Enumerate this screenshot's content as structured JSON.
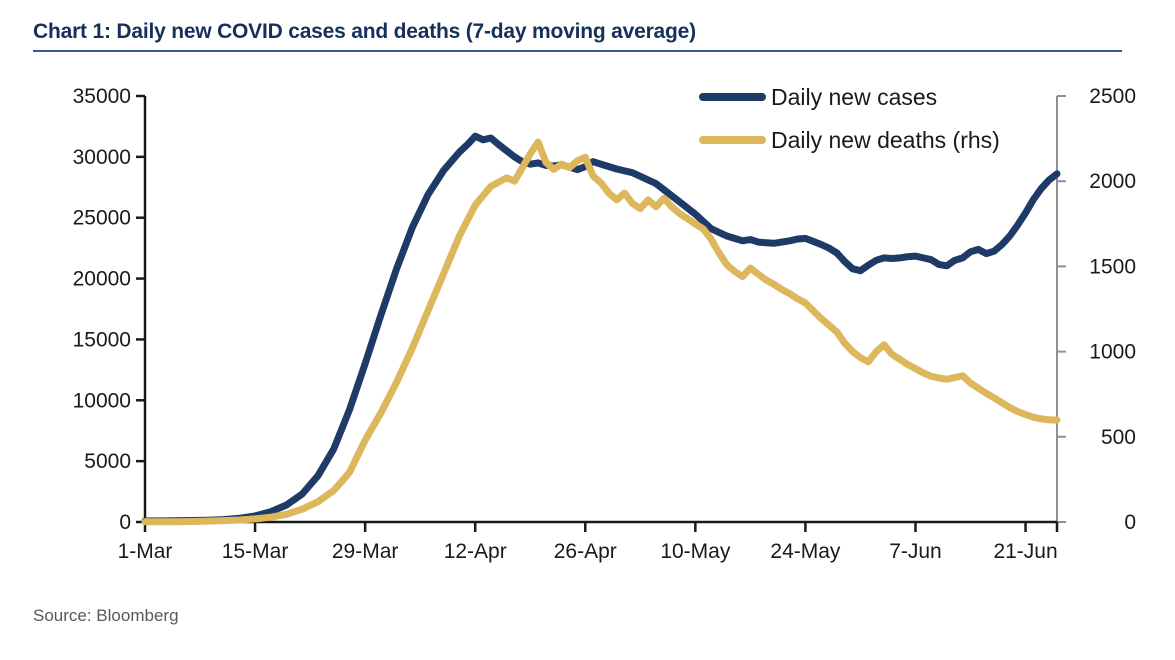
{
  "title": "Chart 1: Daily new COVID cases and deaths (7-day moving average)",
  "source": "Source: Bloomberg",
  "colors": {
    "cases_line": "#1e3a66",
    "deaths_line": "#ddb75c",
    "title_text": "#16305a",
    "title_rule": "#2f5b97",
    "axis": "#1a1a1a",
    "right_axis": "#8f9093",
    "tick_text": "#1a1a1a",
    "source_text": "#58595b"
  },
  "chart_data": {
    "type": "line",
    "title": "Chart 1: Daily new COVID cases and deaths (7-day moving average)",
    "x_unit": "days since 1-Mar",
    "x_range": [
      0,
      116
    ],
    "x_tick_days": [
      0,
      14,
      28,
      42,
      56,
      70,
      84,
      98,
      112
    ],
    "x_tick_labels": [
      "1-Mar",
      "15-Mar",
      "29-Mar",
      "12-Apr",
      "26-Apr",
      "10-May",
      "24-May",
      "7-Jun",
      "21-Jun"
    ],
    "left_axis": {
      "min": 0,
      "max": 35000,
      "step": 5000,
      "tick_labels": [
        "0",
        "5000",
        "10000",
        "15000",
        "20000",
        "25000",
        "30000",
        "35000"
      ]
    },
    "right_axis": {
      "min": 0,
      "max": 2500,
      "step": 500,
      "tick_labels": [
        "0",
        "500",
        "1000",
        "1500",
        "2000",
        "2500"
      ]
    },
    "legend_position": "top-right-inside",
    "grid": false,
    "series": [
      {
        "name": "Daily new cases",
        "axis": "left",
        "color_key": "cases_line",
        "points": [
          [
            0,
            80
          ],
          [
            2,
            90
          ],
          [
            4,
            100
          ],
          [
            6,
            120
          ],
          [
            8,
            150
          ],
          [
            10,
            200
          ],
          [
            12,
            300
          ],
          [
            14,
            500
          ],
          [
            16,
            850
          ],
          [
            18,
            1400
          ],
          [
            20,
            2300
          ],
          [
            22,
            3800
          ],
          [
            24,
            6000
          ],
          [
            26,
            9200
          ],
          [
            28,
            13000
          ],
          [
            30,
            17000
          ],
          [
            32,
            20800
          ],
          [
            34,
            24200
          ],
          [
            36,
            26900
          ],
          [
            38,
            28900
          ],
          [
            40,
            30400
          ],
          [
            41,
            31000
          ],
          [
            42,
            31700
          ],
          [
            43,
            31400
          ],
          [
            44,
            31550
          ],
          [
            45,
            31000
          ],
          [
            46,
            30500
          ],
          [
            47,
            30000
          ],
          [
            48,
            29600
          ],
          [
            49,
            29400
          ],
          [
            50,
            29500
          ],
          [
            51,
            29300
          ],
          [
            52,
            29250
          ],
          [
            53,
            29350
          ],
          [
            54,
            29150
          ],
          [
            55,
            28950
          ],
          [
            56,
            29200
          ],
          [
            57,
            29600
          ],
          [
            58,
            29400
          ],
          [
            59,
            29200
          ],
          [
            60,
            29000
          ],
          [
            61,
            28850
          ],
          [
            62,
            28700
          ],
          [
            63,
            28400
          ],
          [
            64,
            28100
          ],
          [
            65,
            27800
          ],
          [
            66,
            27300
          ],
          [
            67,
            26800
          ],
          [
            68,
            26300
          ],
          [
            69,
            25800
          ],
          [
            70,
            25300
          ],
          [
            71,
            24700
          ],
          [
            72,
            24100
          ],
          [
            73,
            23800
          ],
          [
            74,
            23500
          ],
          [
            75,
            23300
          ],
          [
            76,
            23100
          ],
          [
            77,
            23200
          ],
          [
            78,
            23000
          ],
          [
            79,
            22950
          ],
          [
            80,
            22900
          ],
          [
            81,
            23000
          ],
          [
            82,
            23100
          ],
          [
            83,
            23250
          ],
          [
            84,
            23300
          ],
          [
            85,
            23050
          ],
          [
            86,
            22800
          ],
          [
            87,
            22500
          ],
          [
            88,
            22100
          ],
          [
            89,
            21400
          ],
          [
            90,
            20800
          ],
          [
            91,
            20650
          ],
          [
            92,
            21100
          ],
          [
            93,
            21500
          ],
          [
            94,
            21700
          ],
          [
            95,
            21650
          ],
          [
            96,
            21700
          ],
          [
            97,
            21800
          ],
          [
            98,
            21850
          ],
          [
            99,
            21700
          ],
          [
            100,
            21550
          ],
          [
            101,
            21150
          ],
          [
            102,
            21050
          ],
          [
            103,
            21500
          ],
          [
            104,
            21700
          ],
          [
            105,
            22200
          ],
          [
            106,
            22400
          ],
          [
            107,
            22050
          ],
          [
            108,
            22250
          ],
          [
            109,
            22800
          ],
          [
            110,
            23500
          ],
          [
            111,
            24400
          ],
          [
            112,
            25400
          ],
          [
            113,
            26500
          ],
          [
            114,
            27400
          ],
          [
            115,
            28100
          ],
          [
            116,
            28600
          ]
        ]
      },
      {
        "name": "Daily new deaths (rhs)",
        "axis": "right",
        "color_key": "deaths_line",
        "points": [
          [
            0,
            1
          ],
          [
            2,
            1
          ],
          [
            4,
            2
          ],
          [
            6,
            3
          ],
          [
            8,
            5
          ],
          [
            10,
            8
          ],
          [
            12,
            12
          ],
          [
            14,
            18
          ],
          [
            16,
            28
          ],
          [
            18,
            45
          ],
          [
            20,
            75
          ],
          [
            22,
            120
          ],
          [
            24,
            185
          ],
          [
            26,
            290
          ],
          [
            28,
            480
          ],
          [
            30,
            640
          ],
          [
            32,
            820
          ],
          [
            34,
            1020
          ],
          [
            36,
            1240
          ],
          [
            38,
            1460
          ],
          [
            40,
            1680
          ],
          [
            42,
            1860
          ],
          [
            44,
            1970
          ],
          [
            46,
            2020
          ],
          [
            47,
            2000
          ],
          [
            48,
            2080
          ],
          [
            49,
            2160
          ],
          [
            50,
            2230
          ],
          [
            51,
            2110
          ],
          [
            52,
            2070
          ],
          [
            53,
            2100
          ],
          [
            54,
            2080
          ],
          [
            55,
            2120
          ],
          [
            56,
            2140
          ],
          [
            57,
            2030
          ],
          [
            58,
            1990
          ],
          [
            59,
            1930
          ],
          [
            60,
            1890
          ],
          [
            61,
            1930
          ],
          [
            62,
            1870
          ],
          [
            63,
            1840
          ],
          [
            64,
            1890
          ],
          [
            65,
            1850
          ],
          [
            66,
            1900
          ],
          [
            67,
            1850
          ],
          [
            68,
            1810
          ],
          [
            69,
            1780
          ],
          [
            70,
            1750
          ],
          [
            71,
            1720
          ],
          [
            72,
            1660
          ],
          [
            73,
            1580
          ],
          [
            74,
            1510
          ],
          [
            75,
            1470
          ],
          [
            76,
            1440
          ],
          [
            77,
            1490
          ],
          [
            78,
            1455
          ],
          [
            79,
            1420
          ],
          [
            80,
            1395
          ],
          [
            81,
            1365
          ],
          [
            82,
            1340
          ],
          [
            83,
            1310
          ],
          [
            84,
            1285
          ],
          [
            85,
            1240
          ],
          [
            86,
            1195
          ],
          [
            87,
            1155
          ],
          [
            88,
            1115
          ],
          [
            89,
            1050
          ],
          [
            90,
            1000
          ],
          [
            91,
            965
          ],
          [
            92,
            940
          ],
          [
            93,
            1000
          ],
          [
            94,
            1040
          ],
          [
            95,
            985
          ],
          [
            96,
            955
          ],
          [
            97,
            925
          ],
          [
            98,
            900
          ],
          [
            99,
            875
          ],
          [
            100,
            855
          ],
          [
            101,
            845
          ],
          [
            102,
            838
          ],
          [
            103,
            848
          ],
          [
            104,
            858
          ],
          [
            105,
            815
          ],
          [
            106,
            785
          ],
          [
            107,
            755
          ],
          [
            108,
            728
          ],
          [
            109,
            700
          ],
          [
            110,
            672
          ],
          [
            111,
            648
          ],
          [
            112,
            630
          ],
          [
            113,
            615
          ],
          [
            114,
            605
          ],
          [
            115,
            600
          ],
          [
            116,
            598
          ]
        ]
      }
    ]
  }
}
